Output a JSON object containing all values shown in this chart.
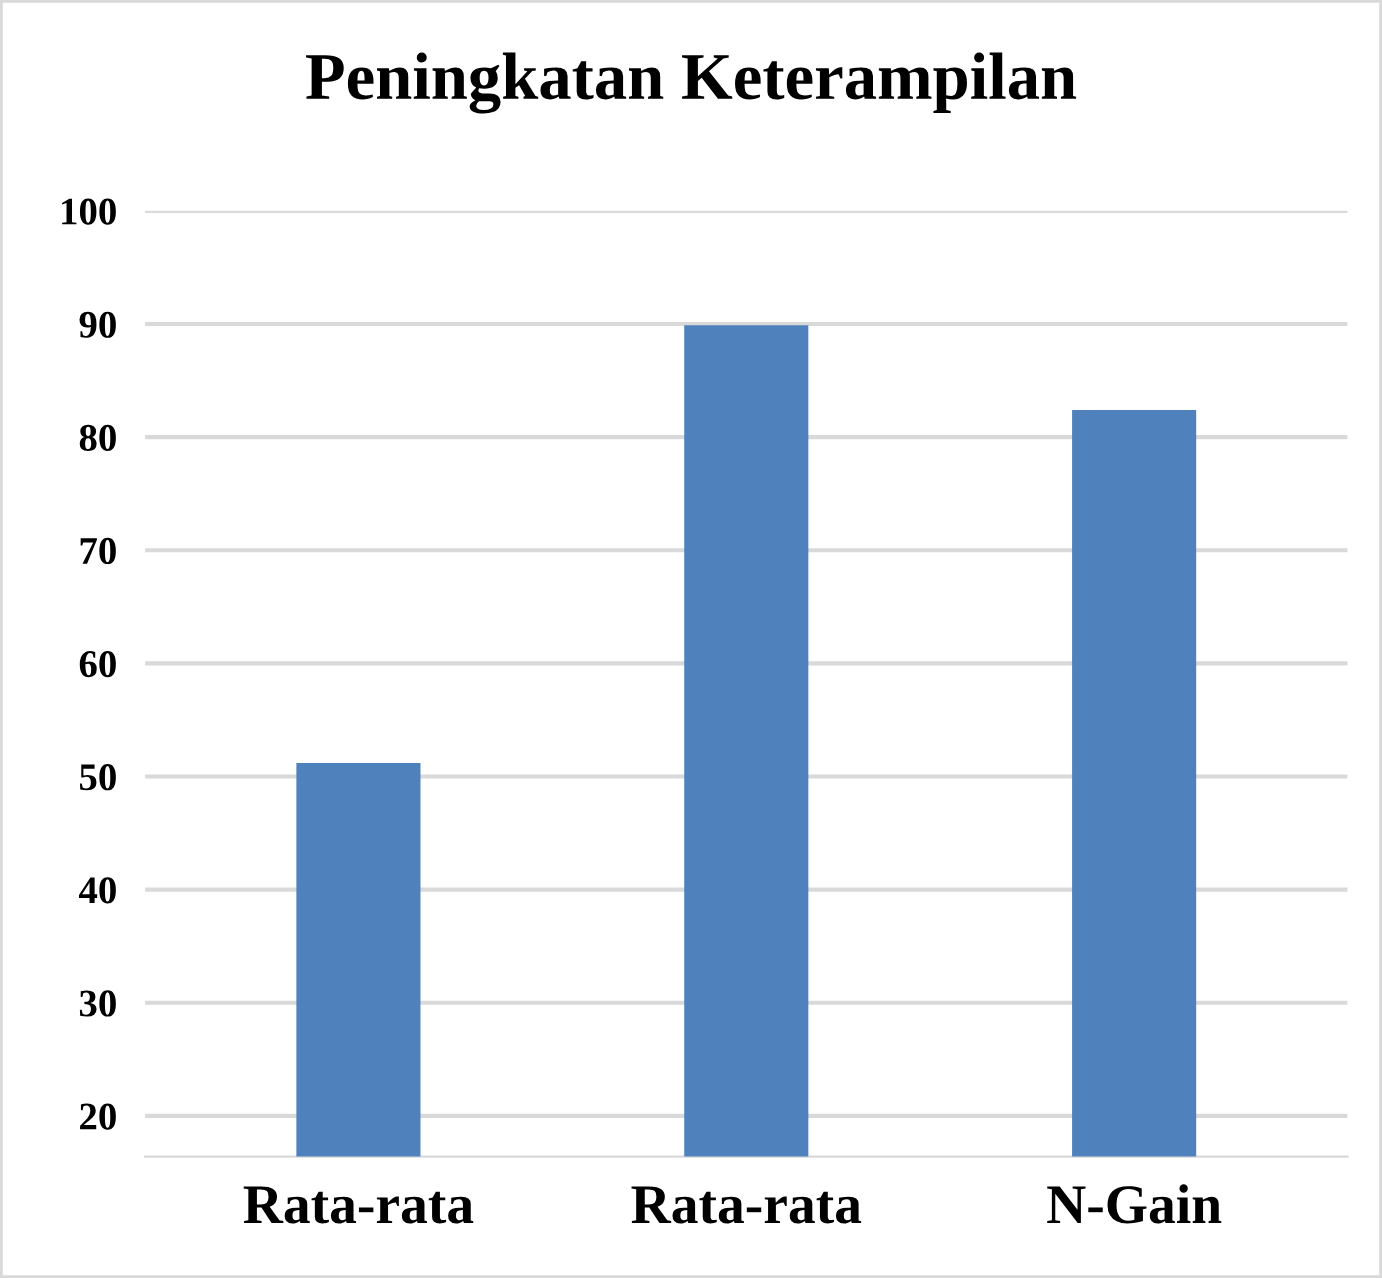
{
  "chart_data": {
    "type": "bar",
    "title": "Peningkatan Keterampilan",
    "categories": [
      "Rata-rata",
      "Rata-rata",
      "N-Gain"
    ],
    "values": [
      51.2,
      89.9,
      82.4
    ],
    "color": "#4f81bd",
    "ylim": [
      16.4,
      100
    ],
    "yticks": [
      20,
      30,
      40,
      50,
      60,
      70,
      80,
      90,
      100
    ],
    "grid": "y"
  }
}
